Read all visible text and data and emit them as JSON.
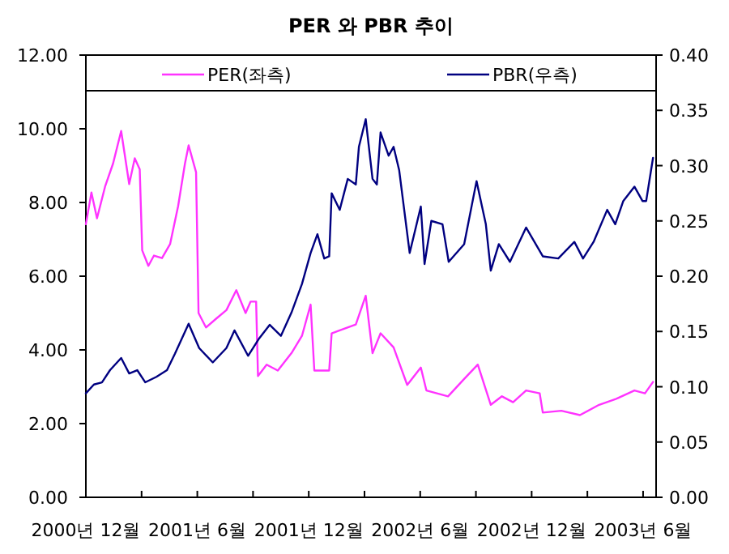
{
  "chart_data": {
    "type": "line",
    "title": "PER 와 PBR 추이",
    "legend": "top",
    "grid": false,
    "line_style": "solid",
    "xlim": [
      "2000-12-01",
      "2003-06-22"
    ],
    "xticks": [
      {
        "value": "2000-12",
        "label": "2000년 12월"
      },
      {
        "value": "2001-03",
        "label": null
      },
      {
        "value": "2001-06",
        "label": "2001년 6월"
      },
      {
        "value": "2001-09",
        "label": null
      },
      {
        "value": "2001-12",
        "label": "2001년 12월"
      },
      {
        "value": "2002-03",
        "label": null
      },
      {
        "value": "2002-06",
        "label": "2002년 6월"
      },
      {
        "value": "2002-09",
        "label": null
      },
      {
        "value": "2002-12",
        "label": "2002년 12월"
      },
      {
        "value": "2003-03",
        "label": null
      },
      {
        "value": "2003-06",
        "label": "2003년 6월"
      }
    ],
    "ylim": [
      0,
      12
    ],
    "yticks": [
      {
        "value": 0,
        "label": "0.00"
      },
      {
        "value": 2,
        "label": "2.00"
      },
      {
        "value": 4,
        "label": "4.00"
      },
      {
        "value": 6,
        "label": "6.00"
      },
      {
        "value": 8,
        "label": "8.00"
      },
      {
        "value": 10,
        "label": "10.00"
      },
      {
        "value": 12,
        "label": "12.00"
      }
    ],
    "y2lim": [
      0,
      0.4
    ],
    "y2ticks": [
      {
        "value": 0,
        "label": "0.00"
      },
      {
        "value": 0.05,
        "label": "0.05"
      },
      {
        "value": 0.1,
        "label": "0.10"
      },
      {
        "value": 0.15,
        "label": "0.15"
      },
      {
        "value": 0.2,
        "label": "0.20"
      },
      {
        "value": 0.25,
        "label": "0.25"
      },
      {
        "value": 0.3,
        "label": "0.30"
      },
      {
        "value": 0.35,
        "label": "0.35"
      },
      {
        "value": 0.4,
        "label": "0.40"
      }
    ],
    "series": [
      {
        "name": "PER(좌측)",
        "color": "#ff33ff",
        "x": [
          "2000-12-01",
          "2000-12-10",
          "2000-12-19",
          "2001-01-02",
          "2001-01-15",
          "2001-01-28",
          "2001-02-11",
          "2001-02-20",
          "2001-02-28",
          "2001-03-02",
          "2001-03-12",
          "2001-03-21",
          "2001-04-04",
          "2001-04-17",
          "2001-04-30",
          "2001-05-11",
          "2001-05-17",
          "2001-05-29",
          "2001-06-03",
          "2001-06-15",
          "2001-07-01",
          "2001-07-18",
          "2001-08-04",
          "2001-08-19",
          "2001-08-27",
          "2001-09-06",
          "2001-09-09",
          "2001-09-23",
          "2001-10-11",
          "2001-11-03",
          "2001-11-20",
          "2001-12-04",
          "2001-12-10",
          "2001-12-26",
          "2002-01-04",
          "2002-01-08",
          "2002-01-21",
          "2002-02-17",
          "2002-03-03",
          "2002-03-14",
          "2002-03-27",
          "2002-04-18",
          "2002-05-10",
          "2002-06-02",
          "2002-06-11",
          "2002-07-16",
          "2002-08-12",
          "2002-09-04",
          "2002-09-25",
          "2002-10-13",
          "2002-10-31",
          "2002-11-22",
          "2002-12-14",
          "2002-12-19",
          "2003-01-19",
          "2003-02-19",
          "2003-03-20",
          "2003-04-16",
          "2003-05-17",
          "2003-06-04",
          "2003-06-17"
        ],
        "values": [
          7.41,
          8.27,
          7.57,
          8.43,
          9.06,
          9.94,
          8.5,
          9.2,
          8.9,
          6.7,
          6.28,
          6.56,
          6.49,
          6.87,
          7.9,
          9.05,
          9.55,
          8.82,
          5.0,
          4.61,
          4.84,
          5.08,
          5.62,
          5.0,
          5.31,
          5.31,
          3.29,
          3.6,
          3.44,
          3.91,
          4.38,
          5.23,
          3.44,
          3.44,
          3.44,
          4.45,
          4.53,
          4.69,
          5.47,
          3.91,
          4.45,
          4.07,
          3.05,
          3.52,
          2.9,
          2.74,
          3.21,
          3.6,
          2.51,
          2.74,
          2.58,
          2.9,
          2.82,
          2.3,
          2.35,
          2.23,
          2.51,
          2.66,
          2.9,
          2.82,
          3.13
        ]
      },
      {
        "name": "PBR(우측)",
        "color": "#000080",
        "axis": "y2",
        "x": [
          "2000-12-01",
          "2000-12-14",
          "2000-12-27",
          "2001-01-10",
          "2001-01-28",
          "2001-02-11",
          "2001-02-24",
          "2001-03-07",
          "2001-03-25",
          "2001-04-12",
          "2001-04-25",
          "2001-05-17",
          "2001-06-04",
          "2001-06-26",
          "2001-07-18",
          "2001-08-01",
          "2001-08-23",
          "2001-09-10",
          "2001-09-28",
          "2001-10-16",
          "2001-11-03",
          "2001-11-20",
          "2001-12-04",
          "2001-12-15",
          "2001-12-26",
          "2002-01-04",
          "2002-01-08",
          "2002-01-21",
          "2002-02-04",
          "2002-02-17",
          "2002-02-22",
          "2002-03-03",
          "2002-03-14",
          "2002-03-21",
          "2002-03-27",
          "2002-04-10",
          "2002-04-18",
          "2002-04-27",
          "2002-05-14",
          "2002-06-02",
          "2002-06-08",
          "2002-06-19",
          "2002-07-07",
          "2002-07-17",
          "2002-08-12",
          "2002-09-02",
          "2002-09-17",
          "2002-09-25",
          "2002-10-08",
          "2002-10-26",
          "2002-11-22",
          "2002-12-19",
          "2003-01-14",
          "2003-02-10",
          "2003-02-24",
          "2003-03-11",
          "2003-04-03",
          "2003-04-16",
          "2003-04-29",
          "2003-05-17",
          "2003-05-30",
          "2003-06-06",
          "2003-06-17"
        ],
        "values": [
          0.094,
          0.102,
          0.104,
          0.115,
          0.126,
          0.112,
          0.115,
          0.104,
          0.109,
          0.115,
          0.13,
          0.157,
          0.135,
          0.122,
          0.135,
          0.151,
          0.128,
          0.143,
          0.156,
          0.146,
          0.167,
          0.193,
          0.221,
          0.238,
          0.216,
          0.218,
          0.275,
          0.26,
          0.288,
          0.283,
          0.317,
          0.342,
          0.288,
          0.283,
          0.33,
          0.309,
          0.317,
          0.296,
          0.221,
          0.263,
          0.211,
          0.25,
          0.247,
          0.213,
          0.229,
          0.286,
          0.247,
          0.205,
          0.229,
          0.213,
          0.244,
          0.218,
          0.216,
          0.231,
          0.216,
          0.231,
          0.26,
          0.247,
          0.268,
          0.281,
          0.268,
          0.268,
          0.307
        ]
      }
    ]
  }
}
